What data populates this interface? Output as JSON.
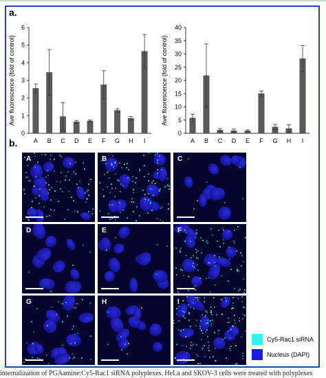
{
  "panel_a_label": "a.",
  "panel_b_label": "b.",
  "chart_data": [
    {
      "type": "bar",
      "categories": [
        "A",
        "B",
        "C",
        "D",
        "E",
        "F",
        "G",
        "H",
        "I"
      ],
      "values": [
        2.55,
        3.45,
        0.95,
        0.65,
        0.7,
        2.75,
        1.3,
        0.85,
        4.65
      ],
      "errors": [
        0.25,
        1.3,
        0.8,
        0.08,
        0.05,
        0.8,
        0.1,
        0.1,
        0.95
      ],
      "ylabel": "Ave fluorescence (fold of control)",
      "ylim": [
        0,
        6
      ],
      "yticks": [
        0,
        1,
        2,
        3,
        4,
        5,
        6
      ]
    },
    {
      "type": "bar",
      "categories": [
        "A",
        "B",
        "C",
        "D",
        "E",
        "F",
        "G",
        "H",
        "I"
      ],
      "values": [
        5.8,
        21.8,
        1.2,
        1.0,
        0.9,
        15.0,
        2.4,
        1.8,
        28.2
      ],
      "errors": [
        1.4,
        12.0,
        0.6,
        0.6,
        0.4,
        1.0,
        1.0,
        1.4,
        5.0
      ],
      "ylabel": "Ave fluorescence (fold of control)",
      "ylim": [
        0,
        40
      ],
      "yticks": [
        0,
        5,
        10,
        15,
        20,
        25,
        30,
        35,
        40
      ]
    }
  ],
  "micrographs": [
    {
      "label": "A",
      "green_density": 0.55
    },
    {
      "label": "B",
      "green_density": 0.7
    },
    {
      "label": "C",
      "green_density": 0.05
    },
    {
      "label": "D",
      "green_density": 0.03
    },
    {
      "label": "E",
      "green_density": 0.03
    },
    {
      "label": "F",
      "green_density": 0.55
    },
    {
      "label": "G",
      "green_density": 0.25
    },
    {
      "label": "H",
      "green_density": 0.05
    },
    {
      "label": "I",
      "green_density": 0.9
    }
  ],
  "legend": {
    "items": [
      {
        "label": "Cy5-Rac1 siRNA",
        "color": "#33f0f0"
      },
      {
        "label": "Nucleus (DAPI)",
        "color": "#1a1ae6"
      }
    ]
  },
  "caption": "internalization of PGAamine:Cy5-Rac1 siRNA polyplexes. HeLa and SKOV-3 cells were treated with polyplexes"
}
